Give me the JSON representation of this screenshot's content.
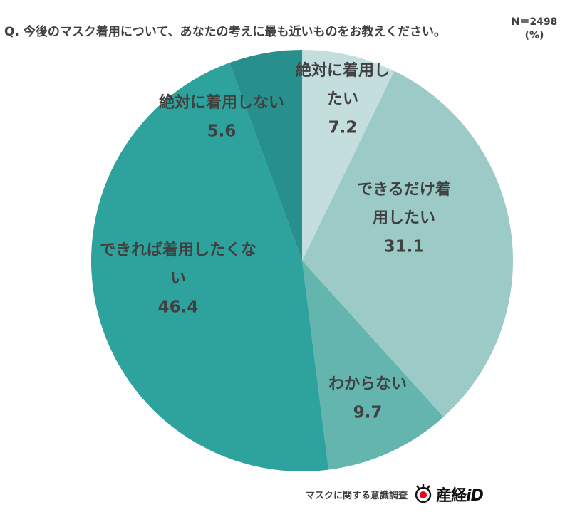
{
  "question": "Q. 今後のマスク着用について、あなたの考えに最も近いものをお教えください。",
  "n_label": "N＝2498",
  "unit_label": "(%)",
  "footer_text": "マスクに関する意識調査",
  "logo_text_jp": "産経",
  "logo_text_id": "iD",
  "chart_data": {
    "type": "pie",
    "start": "12 o'clock",
    "direction": "clockwise",
    "slices": [
      {
        "label": "絶対に着用したい",
        "label_lines": [
          "絶対に着用し",
          "たい"
        ],
        "value": 7.2,
        "value_label": "7.2",
        "color": "#c3dedc"
      },
      {
        "label": "できるだけ着用したい",
        "label_lines": [
          "できるだけ着",
          "用したい"
        ],
        "value": 31.1,
        "value_label": "31.1",
        "color": "#9ccbc7"
      },
      {
        "label": "わからない",
        "label_lines": [
          "わからない"
        ],
        "value": 9.7,
        "value_label": "9.7",
        "color": "#63b5ae"
      },
      {
        "label": "できれば着用したくない",
        "label_lines": [
          "できれば着用したくな",
          "い"
        ],
        "value": 46.4,
        "value_label": "46.4",
        "color": "#2ea39e"
      },
      {
        "label": "絶対に着用しない",
        "label_lines": [
          "絶対に着用しない"
        ],
        "value": 5.6,
        "value_label": "5.6",
        "color": "#28908c"
      }
    ]
  }
}
